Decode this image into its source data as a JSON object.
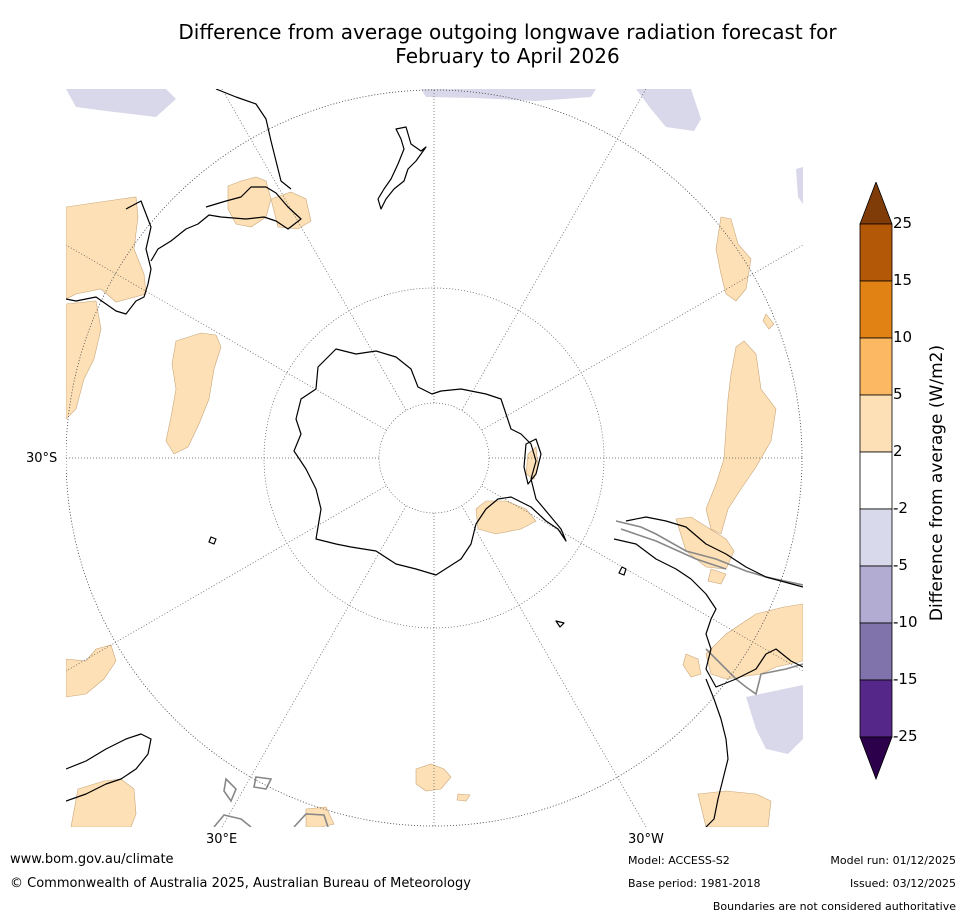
{
  "title": {
    "line1": "Difference from average outgoing longwave radiation forecast for",
    "line2": "February to April 2026"
  },
  "map": {
    "lat_labels": [
      "30°S"
    ],
    "lon_labels": [
      "30°E",
      "30°W"
    ],
    "colors": {
      "ocean": "#ffffff",
      "slight_positive": "#fde0b6",
      "slight_negative": "#d8d8ea",
      "coast": "#000000",
      "boundary": "#888888",
      "grid": "#555555"
    }
  },
  "colorbar": {
    "title": "Difference from average (W/m2)",
    "ticks": [
      "25",
      "15",
      "10",
      "5",
      "2",
      "-2",
      "-5",
      "-10",
      "-15",
      "-25"
    ],
    "segments": [
      {
        "range": "above 25",
        "color": "#7f3b08"
      },
      {
        "range": "15 to 25",
        "color": "#b35806"
      },
      {
        "range": "10 to 15",
        "color": "#e08214"
      },
      {
        "range": "5 to 10",
        "color": "#fdb863"
      },
      {
        "range": "2 to 5",
        "color": "#fee0b6"
      },
      {
        "range": "-2 to 2",
        "color": "#ffffff"
      },
      {
        "range": "-5 to -2",
        "color": "#d8daeb"
      },
      {
        "range": "-10 to -5",
        "color": "#b2abd2"
      },
      {
        "range": "-15 to -10",
        "color": "#8073ac"
      },
      {
        "range": "-25 to -15",
        "color": "#542788"
      },
      {
        "range": "below -25",
        "color": "#2d004b"
      }
    ]
  },
  "footer": {
    "url": "www.bom.gov.au/climate",
    "copyright": "© Commonwealth of Australia 2025, Australian Bureau of Meteorology",
    "model": "Model: ACCESS-S2",
    "base_period": "Base period: 1981-2018",
    "model_run": "Model run: 01/12/2025",
    "issued": "Issued: 03/12/2025",
    "disclaimer": "Boundaries are not considered authoritative"
  }
}
